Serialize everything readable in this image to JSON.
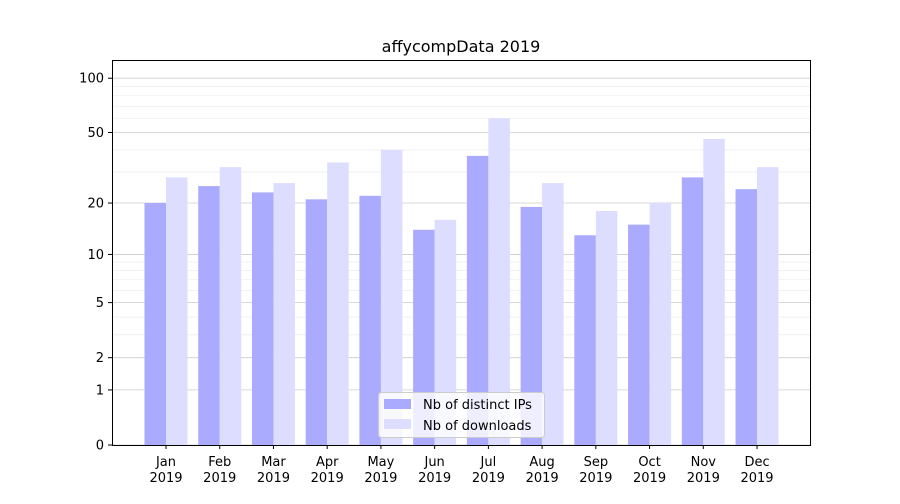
{
  "chart_data": {
    "type": "bar",
    "title": "affycompData 2019",
    "xlabel": "",
    "ylabel": "",
    "yscale": "log(1+y)",
    "ylim": [
      0,
      126
    ],
    "yticks": [
      0,
      1,
      2,
      5,
      10,
      20,
      50,
      100
    ],
    "ytick_labels": [
      "0",
      "1",
      "2",
      "5",
      "10",
      "20",
      "50",
      "100"
    ],
    "grid": true,
    "legend_position": "bottom-center",
    "categories": [
      [
        "Jan",
        "2019"
      ],
      [
        "Feb",
        "2019"
      ],
      [
        "Mar",
        "2019"
      ],
      [
        "Apr",
        "2019"
      ],
      [
        "May",
        "2019"
      ],
      [
        "Jun",
        "2019"
      ],
      [
        "Jul",
        "2019"
      ],
      [
        "Aug",
        "2019"
      ],
      [
        "Sep",
        "2019"
      ],
      [
        "Oct",
        "2019"
      ],
      [
        "Nov",
        "2019"
      ],
      [
        "Dec",
        "2019"
      ]
    ],
    "series": [
      {
        "name": "Nb of distinct IPs",
        "color": "#aaaaff",
        "values": [
          20,
          25,
          23,
          21,
          22,
          14,
          37,
          19,
          13,
          15,
          28,
          24
        ]
      },
      {
        "name": "Nb of downloads",
        "color": "#ddddff",
        "values": [
          28,
          32,
          26,
          34,
          40,
          16,
          60,
          26,
          18,
          20,
          46,
          32
        ]
      }
    ]
  }
}
